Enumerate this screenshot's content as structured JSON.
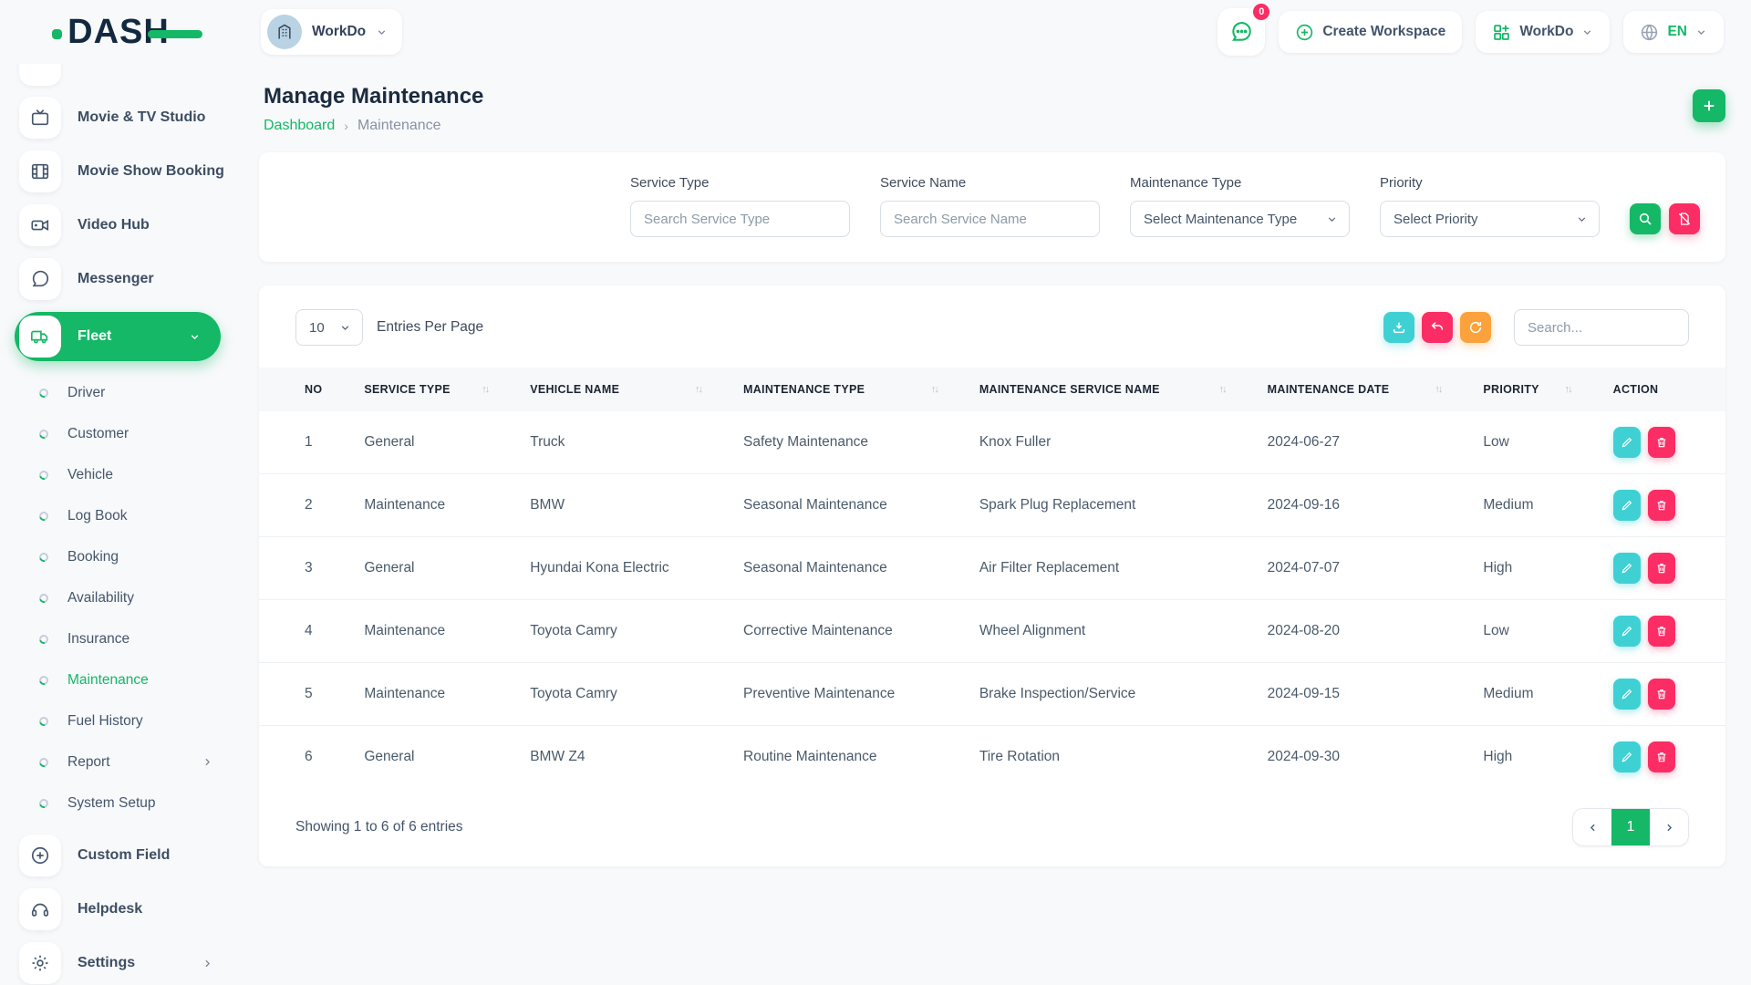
{
  "brand": {
    "logo_text": "DASH"
  },
  "topbar": {
    "workspace_selector": {
      "label": "WorkDo"
    },
    "messages_badge": "0",
    "create_workspace_label": "Create Workspace",
    "workdo_menu_label": "WorkDo",
    "language": "EN"
  },
  "sidebar": {
    "items": [
      {
        "label": "Movie & TV Studio",
        "icon": "tv-icon",
        "type": "main",
        "chevron": "right"
      },
      {
        "label": "Movie Show Booking",
        "icon": "film-icon",
        "type": "main",
        "chevron": "right"
      },
      {
        "label": "Video Hub",
        "icon": "video-camera-icon",
        "type": "main"
      },
      {
        "label": "Messenger",
        "icon": "chat-icon",
        "type": "main"
      },
      {
        "label": "Fleet",
        "icon": "truck-icon",
        "type": "main",
        "active": true,
        "chevron": "down"
      },
      {
        "label": "Driver",
        "type": "sub"
      },
      {
        "label": "Customer",
        "type": "sub"
      },
      {
        "label": "Vehicle",
        "type": "sub"
      },
      {
        "label": "Log Book",
        "type": "sub"
      },
      {
        "label": "Booking",
        "type": "sub"
      },
      {
        "label": "Availability",
        "type": "sub"
      },
      {
        "label": "Insurance",
        "type": "sub"
      },
      {
        "label": "Maintenance",
        "type": "sub",
        "active": true
      },
      {
        "label": "Fuel History",
        "type": "sub"
      },
      {
        "label": "Report",
        "type": "sub",
        "chevron": "right"
      },
      {
        "label": "System Setup",
        "type": "sub"
      },
      {
        "label": "Custom Field",
        "icon": "plus-circle-icon",
        "type": "main"
      },
      {
        "label": "Helpdesk",
        "icon": "headset-icon",
        "type": "main"
      },
      {
        "label": "Settings",
        "icon": "gear-icon",
        "type": "main",
        "chevron": "right"
      }
    ]
  },
  "page": {
    "title": "Manage Maintenance",
    "breadcrumb": {
      "0": "Dashboard",
      "1": "Maintenance",
      "separator": "›"
    }
  },
  "filters": {
    "service_type": {
      "label": "Service Type",
      "placeholder": "Search Service Type"
    },
    "service_name": {
      "label": "Service Name",
      "placeholder": "Search Service Name"
    },
    "maintenance_type": {
      "label": "Maintenance Type",
      "value": "Select Maintenance Type"
    },
    "priority": {
      "label": "Priority",
      "value": "Select Priority"
    }
  },
  "table": {
    "entries_per_page": "10",
    "entries_per_page_label": "Entries Per Page",
    "search_placeholder": "Search...",
    "columns": [
      {
        "label": "NO",
        "sortable": false
      },
      {
        "label": "SERVICE TYPE",
        "sortable": true
      },
      {
        "label": "VEHICLE NAME",
        "sortable": true
      },
      {
        "label": "MAINTENANCE TYPE",
        "sortable": true
      },
      {
        "label": "MAINTENANCE SERVICE NAME",
        "sortable": true
      },
      {
        "label": "MAINTENANCE DATE",
        "sortable": true
      },
      {
        "label": "PRIORITY",
        "sortable": true
      },
      {
        "label": "ACTION",
        "sortable": false
      }
    ],
    "rows": [
      {
        "no": "1",
        "service_type": "General",
        "vehicle_name": "Truck",
        "maintenance_type": "Safety Maintenance",
        "maintenance_service_name": "Knox Fuller",
        "maintenance_date": "2024-06-27",
        "priority": "Low"
      },
      {
        "no": "2",
        "service_type": "Maintenance",
        "vehicle_name": "BMW",
        "maintenance_type": "Seasonal Maintenance",
        "maintenance_service_name": "Spark Plug Replacement",
        "maintenance_date": "2024-09-16",
        "priority": "Medium"
      },
      {
        "no": "3",
        "service_type": "General",
        "vehicle_name": "Hyundai Kona Electric",
        "maintenance_type": "Seasonal Maintenance",
        "maintenance_service_name": "Air Filter Replacement",
        "maintenance_date": "2024-07-07",
        "priority": "High"
      },
      {
        "no": "4",
        "service_type": "Maintenance",
        "vehicle_name": "Toyota Camry",
        "maintenance_type": "Corrective Maintenance",
        "maintenance_service_name": "Wheel Alignment",
        "maintenance_date": "2024-08-20",
        "priority": "Low"
      },
      {
        "no": "5",
        "service_type": "Maintenance",
        "vehicle_name": "Toyota Camry",
        "maintenance_type": "Preventive Maintenance",
        "maintenance_service_name": "Brake Inspection/Service",
        "maintenance_date": "2024-09-15",
        "priority": "Medium"
      },
      {
        "no": "6",
        "service_type": "General",
        "vehicle_name": "BMW Z4",
        "maintenance_type": "Routine Maintenance",
        "maintenance_service_name": "Tire Rotation",
        "maintenance_date": "2024-09-30",
        "priority": "High"
      }
    ],
    "footer": {
      "showing_text": "Showing 1 to 6 of 6 entries",
      "current_page": "1"
    }
  },
  "colors": {
    "accent_green": "#14b866",
    "pink": "#fb2d64",
    "cyan": "#3fd0d4",
    "orange": "#fba23c",
    "avatar_blue": "#b9d2e4",
    "title_text": "#1b2b3f"
  }
}
